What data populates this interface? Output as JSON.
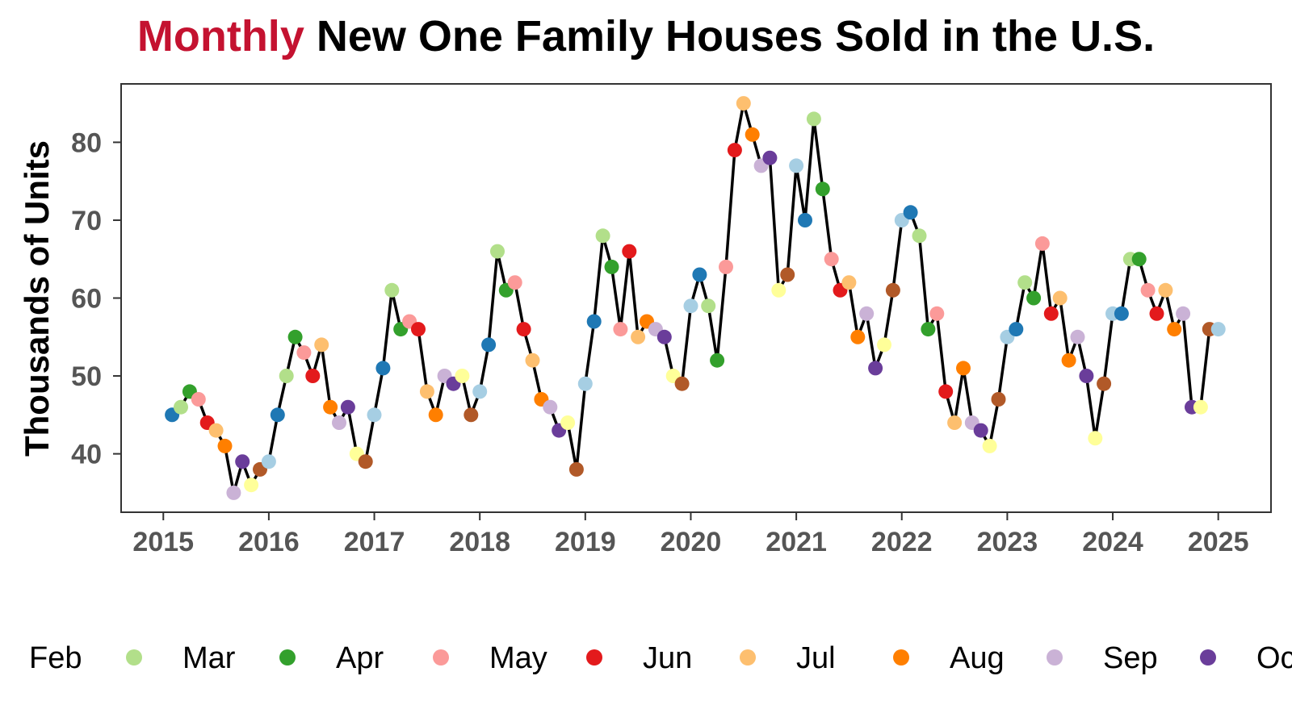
{
  "chart_title": {
    "accent_word": "Monthly",
    "rest": "New One Family Houses Sold in the U.S."
  },
  "colors": {
    "title_accent": "#c41230",
    "line": "#000000",
    "Jan": "#a6cee3",
    "Feb": "#1f78b4",
    "Mar": "#b2df8a",
    "Apr": "#33a02c",
    "May": "#fb9a99",
    "Jun": "#e31a1c",
    "Jul": "#fdbf6f",
    "Aug": "#ff7f00",
    "Sep": "#cab2d6",
    "Oct": "#6a3d9a",
    "Nov": "#ffff99",
    "Dec": "#b15928"
  },
  "chart_data": {
    "type": "line",
    "title": "Monthly New One Family Houses Sold in the U.S.",
    "ylabel": "Thousands of Units",
    "xlabel": "",
    "ylim": [
      32.5,
      87.5
    ],
    "xlim": [
      2014.6,
      2025.5
    ],
    "y_ticks": [
      40,
      50,
      60,
      70,
      80
    ],
    "x_ticks": [
      2015,
      2016,
      2017,
      2018,
      2019,
      2020,
      2021,
      2022,
      2023,
      2024,
      2025
    ],
    "grid": false,
    "legend_position": "bottom",
    "legend_entries": [
      "Feb",
      "Mar",
      "Apr",
      "May",
      "Jun",
      "Jul",
      "Aug",
      "Sep",
      "Oct"
    ],
    "start": "2015-02",
    "values": [
      45,
      46,
      48,
      47,
      44,
      43,
      41,
      35,
      39,
      36,
      38,
      39,
      45,
      50,
      55,
      53,
      50,
      54,
      46,
      44,
      46,
      40,
      39,
      45,
      51,
      61,
      56,
      57,
      56,
      48,
      45,
      50,
      49,
      50,
      45,
      48,
      54,
      66,
      61,
      62,
      56,
      52,
      47,
      46,
      43,
      44,
      38,
      49,
      57,
      68,
      64,
      56,
      66,
      55,
      57,
      56,
      55,
      50,
      49,
      59,
      63,
      59,
      52,
      64,
      79,
      85,
      81,
      77,
      78,
      61,
      63,
      77,
      70,
      83,
      74,
      65,
      61,
      62,
      55,
      58,
      51,
      54,
      61,
      70,
      71,
      68,
      56,
      58,
      48,
      44,
      51,
      44,
      43,
      41,
      47,
      55,
      56,
      62,
      60,
      67,
      58,
      60,
      52,
      55,
      50,
      42,
      49,
      58,
      58,
      65,
      65,
      61,
      58,
      61,
      56,
      58,
      46,
      46,
      56,
      56
    ]
  }
}
